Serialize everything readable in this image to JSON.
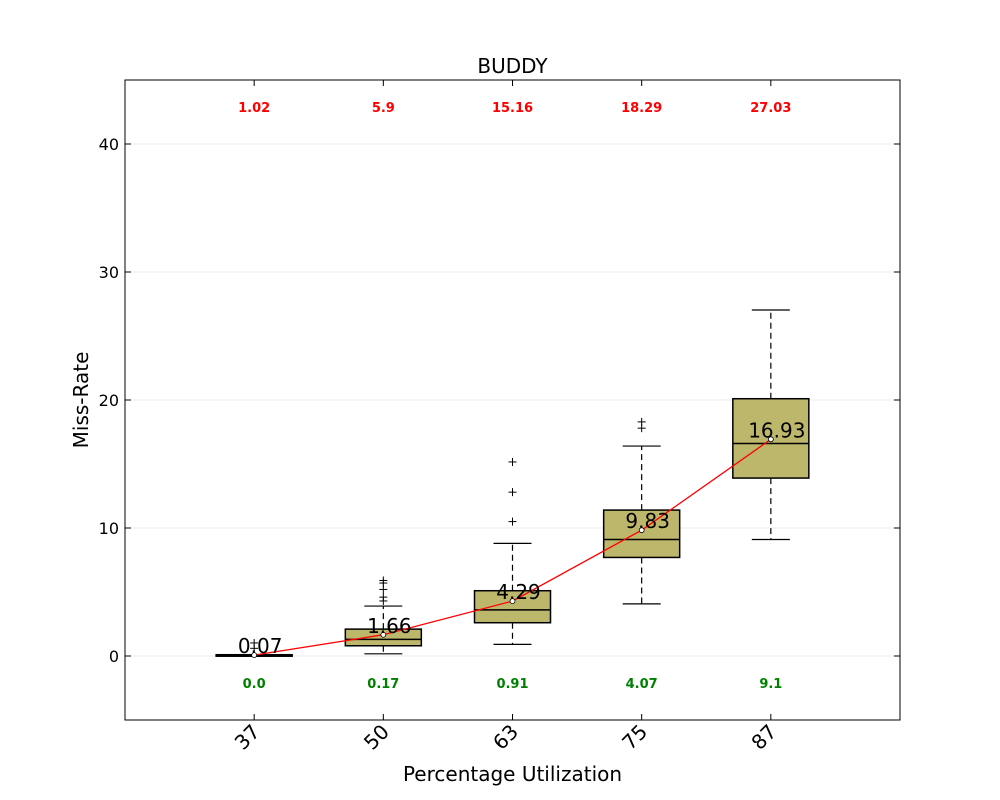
{
  "chart_data": {
    "type": "box",
    "title": "BUDDY",
    "xlabel": "Percentage Utilization",
    "ylabel": "Miss-Rate",
    "ylim": [
      -5,
      45
    ],
    "yticks": [
      0,
      10,
      20,
      30,
      40
    ],
    "categories": [
      "37",
      "50",
      "63",
      "75",
      "87"
    ],
    "grid": "horizontal",
    "colors": {
      "box_fill": "#bdb76b",
      "mean_line": "#ff0000",
      "max_label": "#ff0000",
      "min_label": "#008000"
    },
    "boxes": [
      {
        "category": "37",
        "whisker_low": 0.0,
        "q1": 0.0,
        "median": 0.05,
        "q3": 0.1,
        "whisker_high": 0.1,
        "outliers": [
          0.6,
          1.02
        ],
        "mean": 0.07
      },
      {
        "category": "50",
        "whisker_low": 0.17,
        "q1": 0.8,
        "median": 1.3,
        "q3": 2.1,
        "whisker_high": 3.9,
        "outliers": [
          4.3,
          4.6,
          5.2,
          5.7,
          5.9
        ],
        "mean": 1.66
      },
      {
        "category": "63",
        "whisker_low": 0.91,
        "q1": 2.6,
        "median": 3.6,
        "q3": 5.1,
        "whisker_high": 8.8,
        "outliers": [
          10.5,
          12.8,
          15.16
        ],
        "mean": 4.29
      },
      {
        "category": "75",
        "whisker_low": 4.07,
        "q1": 7.7,
        "median": 9.1,
        "q3": 11.4,
        "whisker_high": 16.4,
        "outliers": [
          17.8,
          18.29
        ],
        "mean": 9.83
      },
      {
        "category": "87",
        "whisker_low": 9.1,
        "q1": 13.9,
        "median": 16.6,
        "q3": 20.1,
        "whisker_high": 27.03,
        "outliers": [],
        "mean": 16.93
      }
    ],
    "mean_labels": [
      "0.07",
      "1.66",
      "4.29",
      "9.83",
      "16.93"
    ],
    "max_labels": [
      "1.02",
      "5.9",
      "15.16",
      "18.29",
      "27.03"
    ],
    "min_labels": [
      "0.0",
      "0.17",
      "0.91",
      "4.07",
      "9.1"
    ]
  }
}
